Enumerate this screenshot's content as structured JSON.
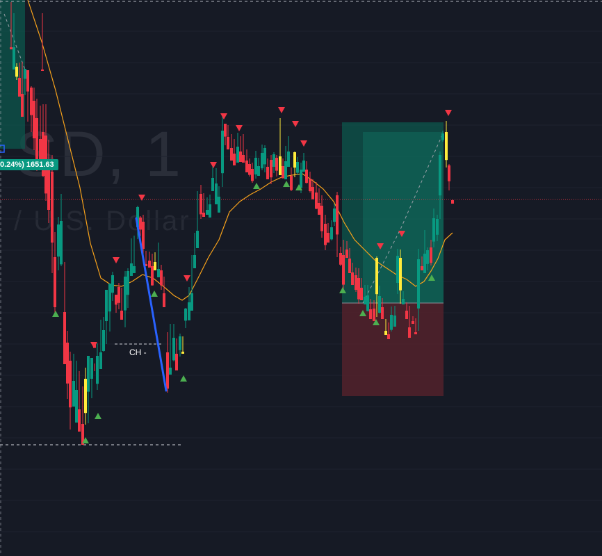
{
  "watermark": {
    "title": "SD, 1",
    "subtitle": "/ U.S. Dollar"
  },
  "last_price_label": "0.24%) 1651.63",
  "annotation_label": "CH -",
  "colors": {
    "background": "#161a25",
    "grid": "#1f2330",
    "bull": "#089981",
    "bear": "#f23645",
    "highlight": "#ffeb3b",
    "moving_average": "#f7a21b",
    "trend_line": "#2962ff",
    "profit_zone": "#0c5b4f",
    "loss_zone": "#52222b",
    "buy_marker": "#4caf50",
    "sell_marker": "#f23645"
  },
  "chart_data": {
    "type": "candlestick",
    "ohlc": [
      [
        61,
        101,
        19,
        100,
        1,
        "r"
      ],
      [
        16,
        68,
        3,
        71,
        0,
        "r"
      ],
      [
        20,
        68,
        19,
        100,
        0,
        "b"
      ],
      [
        24,
        96,
        91,
        115,
        0,
        "y"
      ],
      [
        28,
        112,
        90,
        139,
        0,
        "r"
      ],
      [
        32,
        135,
        89,
        168,
        0,
        "r"
      ],
      [
        36,
        99,
        113,
        137,
        0,
        "b"
      ],
      [
        40,
        101,
        124,
        175,
        0,
        "r"
      ],
      [
        45,
        126,
        124,
        190,
        0,
        "r"
      ],
      [
        49,
        145,
        126,
        216,
        0,
        "r"
      ],
      [
        53,
        170,
        142,
        246,
        0,
        "r"
      ],
      [
        58,
        200,
        152,
        243,
        0,
        "r"
      ],
      [
        62,
        190,
        150,
        255,
        0,
        "r"
      ],
      [
        66,
        195,
        150,
        289,
        0,
        "r"
      ],
      [
        70,
        230,
        201,
        321,
        0,
        "r"
      ],
      [
        75,
        247,
        223,
        393,
        0,
        "r"
      ],
      [
        79,
        370,
        334,
        454,
        0,
        "r"
      ],
      [
        84,
        323,
        312,
        389,
        0,
        "b"
      ],
      [
        88,
        318,
        279,
        383,
        0,
        "b"
      ],
      [
        93,
        449,
        377,
        524,
        0,
        "r"
      ],
      [
        97,
        493,
        476,
        574,
        0,
        "r"
      ],
      [
        101,
        519,
        506,
        618,
        0,
        "r"
      ],
      [
        106,
        548,
        509,
        585,
        0,
        "b"
      ],
      [
        110,
        561,
        519,
        608,
        0,
        "b"
      ],
      [
        114,
        589,
        534,
        621,
        0,
        "r"
      ],
      [
        119,
        610,
        556,
        640,
        0,
        "r"
      ],
      [
        123,
        545,
        529,
        611,
        0,
        "y"
      ],
      [
        127,
        512,
        523,
        609,
        0,
        "b"
      ],
      [
        132,
        515,
        523,
        573,
        0,
        "b"
      ],
      [
        136,
        494,
        523,
        534,
        0,
        "r"
      ],
      [
        140,
        512,
        494,
        561,
        0,
        "b"
      ],
      [
        145,
        507,
        460,
        531,
        0,
        "b"
      ],
      [
        149,
        475,
        456,
        506,
        0,
        "b"
      ],
      [
        153,
        417,
        420,
        495,
        0,
        "b"
      ],
      [
        158,
        408,
        410,
        477,
        0,
        "b"
      ],
      [
        162,
        396,
        391,
        433,
        0,
        "b"
      ],
      [
        167,
        424,
        426,
        450,
        0,
        "r"
      ],
      [
        171,
        413,
        407,
        445,
        0,
        "r"
      ],
      [
        175,
        447,
        414,
        460,
        0,
        "r"
      ],
      [
        180,
        398,
        390,
        471,
        0,
        "b"
      ],
      [
        184,
        390,
        386,
        443,
        0,
        "b"
      ],
      [
        189,
        379,
        343,
        397,
        0,
        "b"
      ],
      [
        193,
        383,
        339,
        393,
        0,
        "b"
      ],
      [
        198,
        298,
        296,
        344,
        0,
        "b"
      ],
      [
        202,
        313,
        311,
        340,
        0,
        "r"
      ],
      [
        206,
        319,
        309,
        374,
        0,
        "r"
      ],
      [
        210,
        380,
        361,
        383,
        0,
        "r"
      ],
      [
        215,
        375,
        362,
        385,
        0,
        "r"
      ],
      [
        219,
        383,
        365,
        411,
        0,
        "r"
      ],
      [
        223,
        377,
        363,
        389,
        0,
        "y"
      ],
      [
        228,
        387,
        349,
        399,
        0,
        "b"
      ],
      [
        232,
        389,
        381,
        417,
        0,
        "r"
      ],
      [
        236,
        422,
        398,
        442,
        0,
        "r"
      ],
      [
        241,
        507,
        478,
        565,
        0,
        "r"
      ],
      [
        245,
        529,
        466,
        539,
        0,
        "b"
      ],
      [
        250,
        486,
        466,
        520,
        0,
        "b"
      ],
      [
        254,
        509,
        487,
        533,
        0,
        "r"
      ],
      [
        259,
        484,
        480,
        513,
        0,
        "b"
      ],
      [
        263,
        506,
        484,
        509,
        0,
        "y"
      ],
      [
        267,
        444,
        443,
        472,
        0,
        "b"
      ],
      [
        272,
        435,
        413,
        461,
        0,
        "b"
      ],
      [
        276,
        422,
        367,
        447,
        0,
        "b"
      ],
      [
        280,
        367,
        335,
        386,
        0,
        "b"
      ],
      [
        284,
        332,
        275,
        357,
        0,
        "b"
      ],
      [
        289,
        279,
        266,
        315,
        0,
        "r"
      ],
      [
        293,
        306,
        278,
        312,
        0,
        "r"
      ],
      [
        298,
        302,
        284,
        309,
        0,
        "b"
      ],
      [
        302,
        294,
        280,
        313,
        0,
        "b"
      ],
      [
        306,
        256,
        238,
        275,
        0,
        "b"
      ],
      [
        311,
        264,
        242,
        294,
        0,
        "b"
      ],
      [
        315,
        283,
        268,
        306,
        0,
        "b"
      ],
      [
        320,
        188,
        167,
        269,
        0,
        "b"
      ],
      [
        324,
        178,
        178,
        209,
        0,
        "r"
      ],
      [
        328,
        197,
        180,
        215,
        0,
        "r"
      ],
      [
        333,
        213,
        193,
        231,
        0,
        "r"
      ],
      [
        337,
        221,
        200,
        238,
        0,
        "r"
      ],
      [
        342,
        211,
        191,
        234,
        0,
        "b"
      ],
      [
        346,
        218,
        196,
        233,
        0,
        "r"
      ],
      [
        350,
        223,
        193,
        234,
        0,
        "r"
      ],
      [
        355,
        231,
        215,
        248,
        0,
        "r"
      ],
      [
        359,
        236,
        228,
        254,
        0,
        "r"
      ],
      [
        363,
        243,
        234,
        263,
        0,
        "r"
      ],
      [
        368,
        227,
        217,
        257,
        0,
        "b"
      ],
      [
        372,
        239,
        227,
        253,
        0,
        "b"
      ],
      [
        377,
        220,
        208,
        245,
        0,
        "b"
      ],
      [
        381,
        213,
        209,
        248,
        0,
        "b"
      ],
      [
        385,
        240,
        228,
        258,
        0,
        "r"
      ],
      [
        390,
        230,
        223,
        265,
        0,
        "r"
      ],
      [
        394,
        222,
        219,
        249,
        0,
        "b"
      ],
      [
        398,
        227,
        223,
        254,
        0,
        "r"
      ],
      [
        403,
        225,
        170,
        252,
        0,
        "y"
      ],
      [
        407,
        239,
        228,
        257,
        0,
        "r"
      ],
      [
        411,
        232,
        210,
        258,
        0,
        "b"
      ],
      [
        415,
        218,
        196,
        240,
        0,
        "b"
      ],
      [
        419,
        253,
        241,
        275,
        0,
        "r"
      ],
      [
        424,
        219,
        218,
        255,
        0,
        "y"
      ],
      [
        428,
        233,
        226,
        252,
        0,
        "b"
      ],
      [
        433,
        244,
        234,
        278,
        0,
        "b"
      ],
      [
        437,
        231,
        220,
        247,
        0,
        "b"
      ],
      [
        441,
        244,
        232,
        264,
        0,
        "r"
      ],
      [
        446,
        257,
        247,
        277,
        0,
        "r"
      ],
      [
        450,
        269,
        258,
        287,
        0,
        "r"
      ],
      [
        455,
        277,
        262,
        301,
        0,
        "r"
      ],
      [
        459,
        292,
        271,
        309,
        0,
        "r"
      ],
      [
        463,
        296,
        281,
        342,
        0,
        "r"
      ],
      [
        468,
        322,
        309,
        360,
        0,
        "r"
      ],
      [
        472,
        335,
        321,
        349,
        0,
        "r"
      ],
      [
        477,
        327,
        317,
        346,
        0,
        "b"
      ],
      [
        481,
        300,
        293,
        325,
        0,
        "b"
      ],
      [
        485,
        281,
        276,
        370,
        0,
        "r"
      ],
      [
        490,
        364,
        355,
        383,
        0,
        "r"
      ],
      [
        494,
        367,
        345,
        416,
        0,
        "r"
      ],
      [
        499,
        359,
        347,
        371,
        0,
        "r"
      ],
      [
        503,
        372,
        357,
        393,
        0,
        "r"
      ],
      [
        507,
        392,
        378,
        410,
        0,
        "r"
      ],
      [
        512,
        396,
        385,
        420,
        0,
        "r"
      ],
      [
        516,
        400,
        386,
        437,
        0,
        "r"
      ],
      [
        520,
        414,
        400,
        432,
        0,
        "r"
      ],
      [
        525,
        427,
        410,
        438,
        0,
        "b"
      ],
      [
        529,
        425,
        410,
        448,
        0,
        "b"
      ],
      [
        533,
        445,
        430,
        459,
        0,
        "r"
      ],
      [
        538,
        444,
        432,
        462,
        0,
        "r"
      ],
      [
        542,
        371,
        369,
        456,
        0,
        "y"
      ],
      [
        546,
        426,
        411,
        451,
        0,
        "b"
      ],
      [
        550,
        442,
        429,
        459,
        0,
        "r"
      ],
      [
        555,
        476,
        459,
        482,
        0,
        "y"
      ],
      [
        559,
        481,
        464,
        488,
        0,
        "r"
      ],
      [
        563,
        453,
        441,
        477,
        0,
        "b"
      ],
      [
        568,
        454,
        440,
        470,
        0,
        "b"
      ],
      [
        572,
        368,
        358,
        423,
        0,
        "b"
      ],
      [
        576,
        371,
        359,
        437,
        0,
        "y"
      ],
      [
        580,
        430,
        419,
        438,
        0,
        "b"
      ],
      [
        585,
        447,
        435,
        459,
        0,
        "r"
      ],
      [
        589,
        471,
        440,
        486,
        0,
        "r"
      ],
      [
        594,
        462,
        455,
        466,
        0,
        "r"
      ],
      [
        598,
        478,
        458,
        481,
        0,
        "r"
      ],
      [
        602,
        373,
        358,
        476,
        0,
        "b"
      ],
      [
        607,
        383,
        369,
        389,
        0,
        "r"
      ],
      [
        611,
        365,
        331,
        393,
        0,
        "b"
      ],
      [
        615,
        360,
        356,
        389,
        0,
        "b"
      ],
      [
        620,
        356,
        345,
        382,
        0,
        "r"
      ],
      [
        624,
        314,
        300,
        356,
        0,
        "b"
      ],
      [
        629,
        315,
        309,
        347,
        0,
        "b"
      ],
      [
        633,
        223,
        218,
        315,
        0,
        "b"
      ],
      [
        637,
        192,
        188,
        204,
        0,
        "b"
      ],
      [
        642,
        190,
        174,
        241,
        0,
        "y"
      ],
      [
        646,
        238,
        236,
        274,
        0,
        "r"
      ],
      [
        651,
        288,
        287,
        293,
        0,
        "r"
      ]
    ]
  }
}
